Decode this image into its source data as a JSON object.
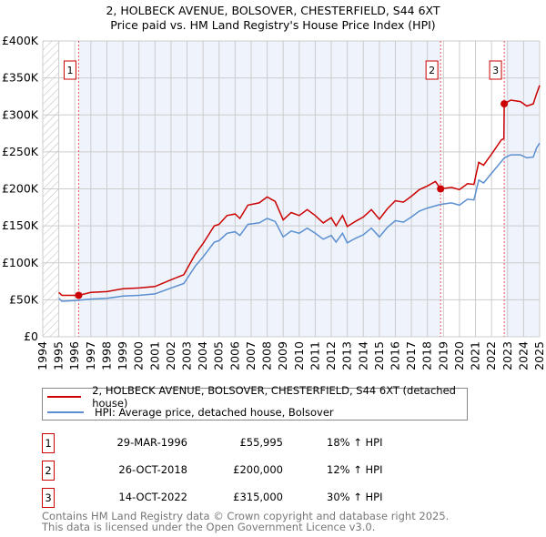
{
  "chart_data": {
    "type": "line",
    "title": "2, HOLBECK AVENUE, BOLSOVER, CHESTERFIELD, S44 6XT",
    "subtitle": "Price paid vs. HM Land Registry's House Price Index (HPI)",
    "xlim": [
      1994,
      2025
    ],
    "ylim": [
      0,
      400000
    ],
    "x_ticks": [
      "1994",
      "1995",
      "1996",
      "1997",
      "1998",
      "1999",
      "2000",
      "2001",
      "2002",
      "2003",
      "2004",
      "2005",
      "2006",
      "2007",
      "2008",
      "2009",
      "2010",
      "2011",
      "2012",
      "2013",
      "2014",
      "2015",
      "2016",
      "2017",
      "2018",
      "2019",
      "2020",
      "2021",
      "2022",
      "2023",
      "2024",
      "2025"
    ],
    "y_ticks": [
      {
        "v": 0,
        "l": "£0"
      },
      {
        "v": 50000,
        "l": "£50K"
      },
      {
        "v": 100000,
        "l": "£100K"
      },
      {
        "v": 150000,
        "l": "£150K"
      },
      {
        "v": 200000,
        "l": "£200K"
      },
      {
        "v": 250000,
        "l": "£250K"
      },
      {
        "v": 300000,
        "l": "£300K"
      },
      {
        "v": 350000,
        "l": "£350K"
      },
      {
        "v": 400000,
        "l": "£400K"
      }
    ],
    "grid": true,
    "series": [
      {
        "name": "2, HOLBECK AVENUE, BOLSOVER, CHESTERFIELD, S44 6XT (detached house)",
        "color": "#cc0000",
        "x": [
          1995,
          1995.2,
          1996,
          1996.24,
          1997,
          1998,
          1999,
          2000,
          2001,
          2002,
          2002.8,
          2003.5,
          2004,
          2004.7,
          2005,
          2005.5,
          2006,
          2006.3,
          2006.8,
          2007.5,
          2008,
          2008.5,
          2009,
          2009.5,
          2010,
          2010.5,
          2011,
          2011.5,
          2012,
          2012.3,
          2012.7,
          2013,
          2013.5,
          2014,
          2014.5,
          2015,
          2015.5,
          2016,
          2016.5,
          2017,
          2017.5,
          2018,
          2018.5,
          2018.82,
          2019.5,
          2020,
          2020.5,
          2020.9,
          2021.2,
          2021.5,
          2022,
          2022.6,
          2022.77,
          2022.79,
          2023.2,
          2023.8,
          2024.2,
          2024.6,
          2024.8,
          2025
        ],
        "y": [
          60,
          56,
          56,
          56,
          60,
          61,
          65,
          66,
          68,
          77,
          84,
          111,
          126,
          150,
          152,
          164,
          166,
          160,
          178,
          181,
          189,
          183,
          158,
          168,
          164,
          172,
          164,
          154,
          161,
          150,
          164,
          149,
          156,
          162,
          172,
          159,
          173,
          184,
          182,
          190,
          199,
          204,
          210,
          200,
          202,
          199,
          207,
          206,
          236,
          232,
          247,
          266,
          268,
          315,
          320,
          318,
          312,
          315,
          328,
          340
        ]
      },
      {
        "name": "HPI: Average price, detached house, Bolsover",
        "color": "#5b8fd0",
        "x": [
          1995,
          1995.2,
          1996,
          1997,
          1998,
          1999,
          2000,
          2001,
          2002,
          2002.8,
          2003.5,
          2004,
          2004.7,
          2005,
          2005.5,
          2006,
          2006.3,
          2006.8,
          2007.5,
          2008,
          2008.5,
          2009,
          2009.5,
          2010,
          2010.5,
          2011,
          2011.5,
          2012,
          2012.3,
          2012.7,
          2013,
          2013.5,
          2014,
          2014.5,
          2015,
          2015.5,
          2016,
          2016.5,
          2017,
          2017.5,
          2018,
          2018.8,
          2019.5,
          2020,
          2020.5,
          2020.9,
          2021.2,
          2021.5,
          2022,
          2022.8,
          2023.2,
          2023.8,
          2024.2,
          2024.6,
          2024.8,
          2025
        ],
        "y": [
          52,
          48,
          49,
          51,
          52,
          55,
          56,
          58,
          66,
          72,
          95,
          108,
          128,
          130,
          140,
          142,
          137,
          152,
          154,
          160,
          156,
          135,
          143,
          140,
          147,
          140,
          132,
          137,
          128,
          140,
          127,
          133,
          138,
          147,
          135,
          148,
          157,
          155,
          162,
          170,
          174,
          179,
          181,
          178,
          186,
          185,
          212,
          208,
          221,
          242,
          246,
          246,
          242,
          243,
          255,
          262
        ]
      }
    ],
    "y_units": "thousands GBP",
    "sales": [
      {
        "id": "1",
        "x": 1996.24,
        "value": 55995,
        "date": "29-MAR-1996",
        "price": "£55,995",
        "hpi": "18% ↑ HPI"
      },
      {
        "id": "2",
        "x": 2018.82,
        "value": 200000,
        "date": "26-OCT-2018",
        "price": "£200,000",
        "hpi": "12% ↑ HPI"
      },
      {
        "id": "3",
        "x": 2022.79,
        "value": 315000,
        "date": "14-OCT-2022",
        "price": "£315,000",
        "hpi": "30% ↑ HPI"
      }
    ],
    "legend_position": "below"
  },
  "footer": {
    "line1": "Contains HM Land Registry data © Crown copyright and database right 2025.",
    "line2": "This data is licensed under the Open Government Licence v3.0."
  }
}
